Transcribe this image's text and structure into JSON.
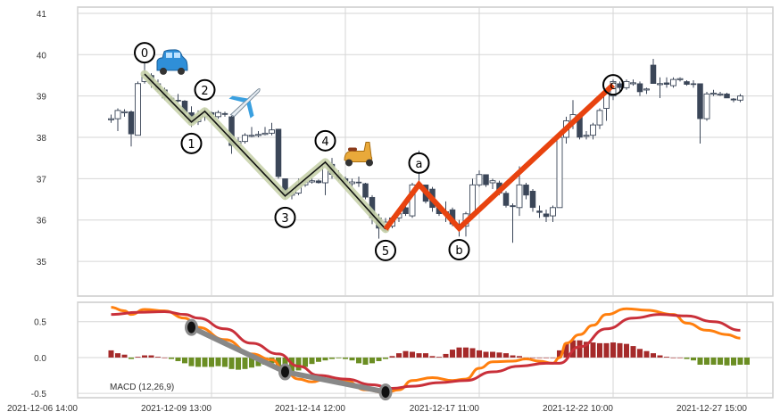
{
  "chart_data": [
    {
      "type": "candlestick",
      "title": "",
      "xlabel": "",
      "ylabel": "",
      "ylim": [
        34.16,
        41.15
      ],
      "grid": true,
      "y_ticks": [
        "35",
        "36",
        "37",
        "38",
        "39",
        "40",
        "41"
      ],
      "x_ticks": [
        {
          "index": 0,
          "label": "2021-12-06 14:00"
        },
        {
          "index": 20,
          "label": "2021-12-09 13:00"
        },
        {
          "index": 40,
          "label": "2021-12-14 12:00"
        },
        {
          "index": 60,
          "label": "2021-12-17 11:00"
        },
        {
          "index": 80,
          "label": "2021-12-22 10:00"
        },
        {
          "index": 100,
          "label": "2021-12-27 15:00"
        }
      ],
      "first_index": 5,
      "ohlc_fields": [
        "open",
        "high",
        "low",
        "close"
      ],
      "candles": [
        [
          38.45,
          38.55,
          38.35,
          38.45
        ],
        [
          38.45,
          38.7,
          38.15,
          38.65
        ],
        [
          38.6,
          38.68,
          38.5,
          38.62
        ],
        [
          38.62,
          38.65,
          37.78,
          38.08
        ],
        [
          38.05,
          39.35,
          38.05,
          39.3
        ],
        [
          39.35,
          39.9,
          39.3,
          39.5
        ],
        [
          39.5,
          39.55,
          39.2,
          39.3
        ],
        [
          39.3,
          39.4,
          39.1,
          39.15
        ],
        [
          39.15,
          39.2,
          38.9,
          38.95
        ],
        [
          38.95,
          39.0,
          38.85,
          38.9
        ],
        [
          38.9,
          39.05,
          38.85,
          38.88
        ],
        [
          38.88,
          38.9,
          38.5,
          38.6
        ],
        [
          38.6,
          38.75,
          38.25,
          38.35
        ],
        [
          38.38,
          38.65,
          38.3,
          38.5
        ],
        [
          38.5,
          38.7,
          38.4,
          38.6
        ],
        [
          38.6,
          38.62,
          38.5,
          38.55
        ],
        [
          38.5,
          38.65,
          38.45,
          38.6
        ],
        [
          38.58,
          38.62,
          38.5,
          38.55
        ],
        [
          38.5,
          38.52,
          37.6,
          37.8
        ],
        [
          37.8,
          38.0,
          37.75,
          37.9
        ],
        [
          37.9,
          38.1,
          37.85,
          38.05
        ],
        [
          38.05,
          38.25,
          38.0,
          38.05
        ],
        [
          38.05,
          38.15,
          38.0,
          38.07
        ],
        [
          38.07,
          38.25,
          38.05,
          38.1
        ],
        [
          38.1,
          38.35,
          38.05,
          38.18
        ],
        [
          38.2,
          38.2,
          37.0,
          37.05
        ],
        [
          37.0,
          37.0,
          36.5,
          36.6
        ],
        [
          36.6,
          36.7,
          36.5,
          36.65
        ],
        [
          36.65,
          37.0,
          36.6,
          36.85
        ],
        [
          36.85,
          37.0,
          36.8,
          36.92
        ],
        [
          36.92,
          37.0,
          36.88,
          36.95
        ],
        [
          36.95,
          36.98,
          36.88,
          36.9
        ],
        [
          36.9,
          37.45,
          36.6,
          37.35
        ],
        [
          37.35,
          37.5,
          37.0,
          37.1
        ],
        [
          37.1,
          37.2,
          36.95,
          37.0
        ],
        [
          37.0,
          37.05,
          36.85,
          36.92
        ],
        [
          36.88,
          37.0,
          36.8,
          36.92
        ],
        [
          36.92,
          37.05,
          36.8,
          36.9
        ],
        [
          36.88,
          36.9,
          36.5,
          36.55
        ],
        [
          36.55,
          36.6,
          35.9,
          36.05
        ],
        [
          36.05,
          36.15,
          35.55,
          35.8
        ],
        [
          35.75,
          36.05,
          35.7,
          35.95
        ],
        [
          35.85,
          36.1,
          35.8,
          36.05
        ],
        [
          36.05,
          36.2,
          35.95,
          36.15
        ],
        [
          36.3,
          36.35,
          36.1,
          36.15
        ],
        [
          36.1,
          36.9,
          36.05,
          36.85
        ],
        [
          36.8,
          37.68,
          36.8,
          36.85
        ],
        [
          36.85,
          36.85,
          36.4,
          36.45
        ],
        [
          36.75,
          36.8,
          36.2,
          36.3
        ],
        [
          36.3,
          36.35,
          36.1,
          36.15
        ],
        [
          36.2,
          36.45,
          35.95,
          36.2
        ],
        [
          36.25,
          36.3,
          35.85,
          35.9
        ],
        [
          35.9,
          36.0,
          35.6,
          35.85
        ],
        [
          35.85,
          36.2,
          35.6,
          36.15
        ],
        [
          36.1,
          37.0,
          36.05,
          36.85
        ],
        [
          36.85,
          37.2,
          36.8,
          37.1
        ],
        [
          37.1,
          37.1,
          36.8,
          36.85
        ],
        [
          36.9,
          37.0,
          36.75,
          36.95
        ],
        [
          36.9,
          36.95,
          36.6,
          36.65
        ],
        [
          36.65,
          36.7,
          36.3,
          36.35
        ],
        [
          36.35,
          36.4,
          35.45,
          36.32
        ],
        [
          36.3,
          37.3,
          36.1,
          36.85
        ],
        [
          36.85,
          36.9,
          36.5,
          36.6
        ],
        [
          36.7,
          36.75,
          36.2,
          36.3
        ],
        [
          36.22,
          36.35,
          36.05,
          36.18
        ],
        [
          36.15,
          36.25,
          35.95,
          36.08
        ],
        [
          36.1,
          36.35,
          35.95,
          36.3
        ],
        [
          36.3,
          38.05,
          36.3,
          38.0
        ],
        [
          38.0,
          38.5,
          37.85,
          38.4
        ],
        [
          38.4,
          38.9,
          38.2,
          38.55
        ],
        [
          38.55,
          38.6,
          37.95,
          38.0
        ],
        [
          38.05,
          38.15,
          37.95,
          38.05
        ],
        [
          38.05,
          38.35,
          37.95,
          38.3
        ],
        [
          38.3,
          38.7,
          38.2,
          38.65
        ],
        [
          38.7,
          39.15,
          38.4,
          39.1
        ],
        [
          39.0,
          39.4,
          38.9,
          39.35
        ],
        [
          39.3,
          39.35,
          39.1,
          39.2
        ],
        [
          39.2,
          39.4,
          39.15,
          39.35
        ],
        [
          39.3,
          39.4,
          39.25,
          39.32
        ],
        [
          39.3,
          39.35,
          39.0,
          39.1
        ],
        [
          39.15,
          39.2,
          39.05,
          39.17
        ],
        [
          39.75,
          39.9,
          39.3,
          39.3
        ],
        [
          39.3,
          39.45,
          38.95,
          39.3
        ],
        [
          39.32,
          39.45,
          39.2,
          39.28
        ],
        [
          39.25,
          39.45,
          39.2,
          39.4
        ],
        [
          39.4,
          39.45,
          39.35,
          39.42
        ],
        [
          39.35,
          39.38,
          39.25,
          39.28
        ],
        [
          39.3,
          39.38,
          39.2,
          39.28
        ],
        [
          39.3,
          39.3,
          37.85,
          38.45
        ],
        [
          38.45,
          39.1,
          38.4,
          39.05
        ],
        [
          39.05,
          39.15,
          39.0,
          39.07
        ],
        [
          39.05,
          39.1,
          39.0,
          39.05
        ],
        [
          39.05,
          39.08,
          38.95,
          38.95
        ],
        [
          38.93,
          38.95,
          38.85,
          38.9
        ],
        [
          38.9,
          39.05,
          38.85,
          39.0
        ]
      ],
      "impulse_wave": [
        {
          "label": "0",
          "index": 10,
          "price": 39.53,
          "pos": "above"
        },
        {
          "label": "1",
          "index": 17,
          "price": 38.37,
          "pos": "below"
        },
        {
          "label": "2",
          "index": 19,
          "price": 38.63,
          "pos": "above"
        },
        {
          "label": "3",
          "index": 31,
          "price": 36.58,
          "pos": "below"
        },
        {
          "label": "4",
          "index": 37,
          "price": 37.4,
          "pos": "above"
        },
        {
          "label": "5",
          "index": 46,
          "price": 35.78,
          "pos": "below"
        }
      ],
      "corrective_wave": [
        {
          "label": "",
          "index": 46,
          "price": 35.78,
          "pos": "none"
        },
        {
          "label": "a",
          "index": 51,
          "price": 36.86,
          "pos": "above"
        },
        {
          "label": "b",
          "index": 57,
          "price": 35.8,
          "pos": "below"
        },
        {
          "label": "c",
          "index": 80,
          "price": 39.27,
          "pos": "on"
        }
      ],
      "annotations": [
        {
          "icon": "car-icon",
          "index": 14,
          "price": 39.75
        },
        {
          "icon": "airplane-icon",
          "index": 25,
          "price": 38.85
        },
        {
          "icon": "scooter-icon",
          "index": 42,
          "price": 37.58
        }
      ],
      "colors": {
        "down": "#3b4658",
        "up_fill": "#ffffff",
        "up_edge": "#3b4658",
        "impulse_glow": "#c8d1ab",
        "impulse_line": "#111111",
        "corrective": "#e8430f"
      }
    },
    {
      "type": "line+bar",
      "label": "MACD (12,26,9)",
      "ylim": [
        -0.56,
        0.77
      ],
      "grid": true,
      "y_ticks": [
        "-0.5",
        "0.0",
        "0.5"
      ],
      "macd": [
        [
          5,
          0.7
        ],
        [
          7,
          0.65
        ],
        [
          8,
          0.6
        ],
        [
          10,
          0.67
        ],
        [
          13,
          0.65
        ],
        [
          16,
          0.55
        ],
        [
          18,
          0.42
        ],
        [
          22,
          0.25
        ],
        [
          26,
          0.05
        ],
        [
          29,
          -0.03
        ],
        [
          31,
          -0.2
        ],
        [
          33,
          -0.3
        ],
        [
          35,
          -0.34
        ],
        [
          37,
          -0.3
        ],
        [
          40,
          -0.32
        ],
        [
          43,
          -0.45
        ],
        [
          46,
          -0.49
        ],
        [
          48,
          -0.45
        ],
        [
          50,
          -0.32
        ],
        [
          53,
          -0.28
        ],
        [
          56,
          -0.32
        ],
        [
          58,
          -0.3
        ],
        [
          60,
          -0.15
        ],
        [
          62,
          -0.06
        ],
        [
          65,
          -0.05
        ],
        [
          67,
          -0.02
        ],
        [
          69,
          -0.05
        ],
        [
          71,
          -0.08
        ],
        [
          72,
          0.0
        ],
        [
          73,
          0.2
        ],
        [
          75,
          0.32
        ],
        [
          77,
          0.45
        ],
        [
          79,
          0.6
        ],
        [
          82,
          0.68
        ],
        [
          85,
          0.66
        ],
        [
          89,
          0.6
        ],
        [
          91,
          0.48
        ],
        [
          94,
          0.38
        ],
        [
          97,
          0.32
        ],
        [
          99,
          0.27
        ]
      ],
      "signal": [
        [
          5,
          0.6
        ],
        [
          9,
          0.63
        ],
        [
          13,
          0.64
        ],
        [
          16,
          0.6
        ],
        [
          18,
          0.55
        ],
        [
          22,
          0.4
        ],
        [
          26,
          0.2
        ],
        [
          30,
          0.05
        ],
        [
          33,
          -0.12
        ],
        [
          36,
          -0.25
        ],
        [
          40,
          -0.3
        ],
        [
          44,
          -0.38
        ],
        [
          47,
          -0.43
        ],
        [
          50,
          -0.4
        ],
        [
          54,
          -0.35
        ],
        [
          58,
          -0.32
        ],
        [
          62,
          -0.2
        ],
        [
          66,
          -0.12
        ],
        [
          70,
          -0.08
        ],
        [
          72,
          -0.08
        ],
        [
          75,
          0.15
        ],
        [
          79,
          0.4
        ],
        [
          83,
          0.55
        ],
        [
          87,
          0.6
        ],
        [
          91,
          0.58
        ],
        [
          95,
          0.5
        ],
        [
          99,
          0.38
        ]
      ],
      "histogram": [
        0.1,
        0.06,
        0.04,
        -0.02,
        0.01,
        0.03,
        0.03,
        0.01,
        0.0,
        -0.02,
        -0.05,
        -0.08,
        -0.12,
        -0.13,
        -0.13,
        -0.13,
        -0.12,
        -0.13,
        -0.16,
        -0.17,
        -0.16,
        -0.14,
        -0.12,
        -0.1,
        -0.08,
        -0.12,
        -0.25,
        -0.2,
        -0.18,
        -0.13,
        -0.09,
        -0.06,
        -0.04,
        -0.02,
        -0.01,
        -0.02,
        -0.04,
        -0.08,
        -0.1,
        -0.08,
        -0.05,
        -0.02,
        0.02,
        0.06,
        0.09,
        0.08,
        0.06,
        0.06,
        0.02,
        0.01,
        0.05,
        0.11,
        0.14,
        0.14,
        0.13,
        0.1,
        0.08,
        0.08,
        0.07,
        0.06,
        0.03,
        0.02,
        0.0,
        0.0,
        0.0,
        0.0,
        0.0,
        0.1,
        0.2,
        0.24,
        0.24,
        0.22,
        0.21,
        0.2,
        0.2,
        0.21,
        0.2,
        0.19,
        0.16,
        0.12,
        0.09,
        0.06,
        0.03,
        0.01,
        0.0,
        0.0,
        -0.02,
        -0.04,
        -0.1,
        -0.1,
        -0.1,
        -0.1,
        -0.11,
        -0.11,
        -0.1,
        -0.1
      ],
      "divergence_line": [
        [
          17,
          0.42
        ],
        [
          31,
          -0.2
        ],
        [
          46,
          -0.48
        ]
      ],
      "colors": {
        "macd": "#ff7f0e",
        "signal": "#c9303a",
        "hist_pos": "#a52a2a",
        "hist_neg": "#6b8e23",
        "divergence": "#888888"
      }
    }
  ]
}
